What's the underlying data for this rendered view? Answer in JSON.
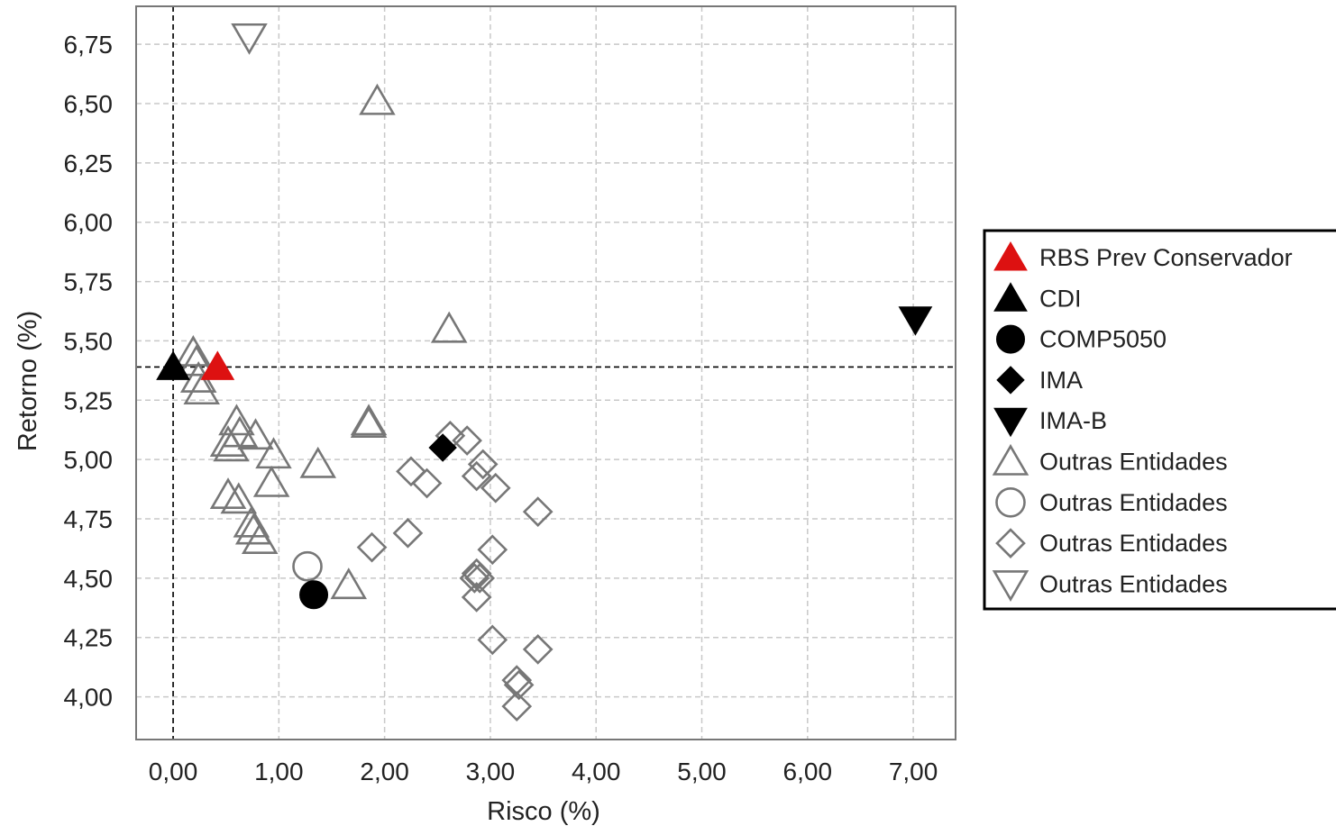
{
  "chart_data": {
    "type": "scatter",
    "title": "",
    "xlabel": "Risco (%)",
    "ylabel": "Retorno (%)",
    "xlim": [
      -0.35,
      7.4
    ],
    "ylim": [
      3.82,
      6.91
    ],
    "xticks": [
      "0,00",
      "1,00",
      "2,00",
      "3,00",
      "4,00",
      "5,00",
      "6,00",
      "7,00"
    ],
    "xtick_values": [
      0,
      1,
      2,
      3,
      4,
      5,
      6,
      7
    ],
    "yticks": [
      "6,75",
      "6,50",
      "6,25",
      "6,00",
      "5,75",
      "5,50",
      "5,25",
      "5,00",
      "4,75",
      "4,50",
      "4,25",
      "4,00"
    ],
    "ytick_values": [
      6.75,
      6.5,
      6.25,
      6.0,
      5.75,
      5.5,
      5.25,
      5.0,
      4.75,
      4.5,
      4.25,
      4.0
    ],
    "grid": true,
    "reference_lines": {
      "x": 0.0,
      "y": 5.39
    },
    "legend_position": "right",
    "series": [
      {
        "name": "RBS Prev Conservador",
        "marker": "triangle-up",
        "filled": true,
        "color": "#dd1111",
        "points": [
          [
            0.42,
            5.39
          ]
        ]
      },
      {
        "name": "CDI",
        "marker": "triangle-up",
        "filled": true,
        "color": "#000000",
        "points": [
          [
            0.0,
            5.39
          ]
        ]
      },
      {
        "name": "COMP5050",
        "marker": "circle",
        "filled": true,
        "color": "#000000",
        "points": [
          [
            1.33,
            4.43
          ]
        ]
      },
      {
        "name": "IMA",
        "marker": "diamond",
        "filled": true,
        "color": "#000000",
        "points": [
          [
            2.55,
            5.05
          ]
        ]
      },
      {
        "name": "IMA-B",
        "marker": "triangle-down",
        "filled": true,
        "color": "#000000",
        "points": [
          [
            7.02,
            5.59
          ]
        ]
      },
      {
        "name": "Outras Entidades",
        "marker": "triangle-up",
        "filled": false,
        "color": "#777777",
        "points": [
          [
            1.93,
            6.51
          ],
          [
            2.61,
            5.55
          ],
          [
            0.19,
            5.45
          ],
          [
            0.22,
            5.41
          ],
          [
            0.24,
            5.34
          ],
          [
            0.27,
            5.29
          ],
          [
            0.6,
            5.16
          ],
          [
            0.63,
            5.11
          ],
          [
            0.78,
            5.1
          ],
          [
            0.52,
            5.07
          ],
          [
            0.55,
            5.05
          ],
          [
            0.95,
            5.02
          ],
          [
            1.37,
            4.98
          ],
          [
            0.93,
            4.9
          ],
          [
            1.85,
            5.16
          ],
          [
            1.85,
            5.15
          ],
          [
            0.52,
            4.85
          ],
          [
            0.62,
            4.83
          ],
          [
            0.74,
            4.73
          ],
          [
            0.76,
            4.7
          ],
          [
            0.82,
            4.66
          ],
          [
            1.66,
            4.47
          ]
        ]
      },
      {
        "name": "Outras Entidades",
        "marker": "circle",
        "filled": false,
        "color": "#777777",
        "points": [
          [
            1.27,
            4.55
          ]
        ]
      },
      {
        "name": "Outras Entidades",
        "marker": "diamond",
        "filled": false,
        "color": "#777777",
        "points": [
          [
            2.62,
            5.1
          ],
          [
            2.78,
            5.08
          ],
          [
            2.25,
            4.95
          ],
          [
            2.4,
            4.9
          ],
          [
            2.93,
            4.98
          ],
          [
            2.87,
            4.93
          ],
          [
            3.05,
            4.88
          ],
          [
            3.45,
            4.78
          ],
          [
            1.88,
            4.63
          ],
          [
            2.22,
            4.69
          ],
          [
            3.02,
            4.62
          ],
          [
            2.85,
            4.5
          ],
          [
            2.87,
            4.52
          ],
          [
            2.9,
            4.5
          ],
          [
            2.87,
            4.42
          ],
          [
            3.02,
            4.24
          ],
          [
            3.45,
            4.2
          ],
          [
            3.25,
            4.07
          ],
          [
            3.27,
            4.05
          ],
          [
            3.25,
            3.96
          ]
        ]
      },
      {
        "name": "Outras Entidades",
        "marker": "triangle-down",
        "filled": false,
        "color": "#777777",
        "points": [
          [
            0.72,
            6.78
          ]
        ]
      }
    ]
  }
}
